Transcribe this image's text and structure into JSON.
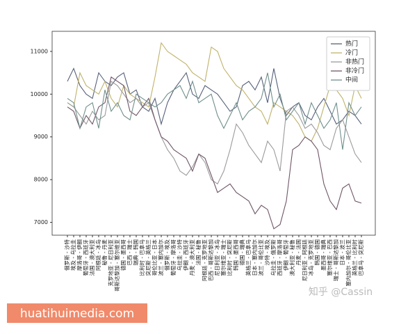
{
  "chart_data": {
    "type": "line",
    "categories": [
      "俄罗斯 - 沙特",
      "埃及 - 乌拉圭",
      "摩洛哥 - 伊朗",
      "葡萄牙 - 西班牙",
      "法国 - 澳大利亚",
      "阿根廷 - 冰岛",
      "秘鲁 - 丹麦",
      "克罗地亚 - 尼日利亚",
      "哥斯达黎加 - 塞尔维亚",
      "德国 - 墨西哥",
      "巴西 - 瑞士",
      "瑞典 - 韩国",
      "比利时 - 巴拿马",
      "突尼斯 - 英格兰",
      "哥伦比亚 - 日本",
      "波兰 - 塞内加尔",
      "俄罗斯 - 埃及",
      "葡萄牙 - 摩洛哥",
      "乌拉圭 - 沙特",
      "伊朗 - 西班牙",
      "丹麦 - 澳大利亚",
      "法国 - 秘鲁",
      "阿根廷 - 克罗地亚",
      "巴西 - 哥斯达黎加",
      "尼日利亚 - 冰岛",
      "塞尔维亚 - 瑞士",
      "比利时 - 突尼斯",
      "韩国 - 墨西哥",
      "德国 - 瑞典",
      "英格兰 - 巴拿马",
      "日本 - 塞内加尔",
      "波兰 - 哥伦比亚",
      "沙特 - 埃及",
      "乌拉圭 - 俄罗斯",
      "西班牙 - 摩洛哥",
      "伊朗 - 葡萄牙",
      "澳大利亚 - 秘鲁",
      "丹麦 - 法国",
      "尼日利亚 - 阿根廷",
      "冰岛 - 克罗地亚",
      "韩国 - 德国",
      "墨西哥 - 瑞典",
      "塞尔维亚 - 巴西",
      "瑞士 - 哥斯达黎加",
      "日本 - 波兰",
      "塞内加尔 - 哥伦比亚",
      "英格兰 - 比利时",
      "巴拿马 - 突尼斯"
    ],
    "series": [
      {
        "name": "热门",
        "color": "#56607a",
        "values": [
          10300,
          10600,
          10200,
          10000,
          9900,
          10500,
          10300,
          10200,
          10400,
          10500,
          10000,
          10100,
          9700,
          9600,
          9900,
          9300,
          9800,
          10100,
          10300,
          10500,
          10000,
          9900,
          10200,
          10100,
          10000,
          9800,
          9600,
          9700,
          10200,
          10300,
          10100,
          10400,
          9800,
          10600,
          9900,
          9500,
          9700,
          9800,
          9500,
          9400,
          9700,
          9900,
          9600,
          9300,
          9400,
          9600,
          9500,
          9300
        ]
      },
      {
        "name": "冷门",
        "color": "#bfb26a",
        "values": [
          9800,
          9700,
          10500,
          10200,
          10100,
          10000,
          10300,
          9900,
          9700,
          10200,
          10000,
          9900,
          9800,
          9700,
          10400,
          11200,
          11000,
          10900,
          10800,
          10700,
          10500,
          10400,
          10300,
          11100,
          11000,
          10600,
          10400,
          10200,
          10100,
          9900,
          9700,
          9600,
          9300,
          9800,
          9700,
          9600,
          9500,
          9300,
          9000,
          8900,
          9200,
          9700,
          10200,
          10100,
          9900,
          9500,
          10200,
          9900
        ]
      },
      {
        "name": "非热门",
        "color": "#9a9a9a",
        "values": [
          9800,
          9700,
          9500,
          9300,
          9600,
          9400,
          9500,
          10300,
          10200,
          10000,
          9800,
          9900,
          9700,
          9800,
          9400,
          9000,
          8700,
          8500,
          8200,
          8100,
          8300,
          8600,
          8400,
          8000,
          7900,
          8200,
          8700,
          9300,
          9100,
          8800,
          8600,
          8400,
          8900,
          8700,
          8200,
          9600,
          9700,
          9500,
          9200,
          9300,
          9100,
          8800,
          8700,
          9200,
          9400,
          9000,
          8600,
          8400
        ]
      },
      {
        "name": "非冷门",
        "color": "#6e5566",
        "values": [
          9700,
          9600,
          9200,
          9500,
          9300,
          9700,
          9800,
          10400,
          10300,
          10200,
          9600,
          9500,
          9700,
          9900,
          9400,
          9000,
          8900,
          8700,
          8600,
          8500,
          8200,
          8600,
          8500,
          8100,
          7700,
          7800,
          7900,
          7700,
          7600,
          7500,
          7200,
          7400,
          7300,
          6850,
          6950,
          7500,
          8700,
          8800,
          9000,
          8900,
          8700,
          7900,
          7500,
          7300,
          7800,
          7900,
          7500,
          7450
        ]
      },
      {
        "name": "中间",
        "color": "#6f8f8a",
        "values": [
          9900,
          9800,
          9200,
          9700,
          9800,
          9200,
          10100,
          9600,
          9800,
          9500,
          9400,
          10000,
          9900,
          9800,
          9700,
          9800,
          10000,
          10100,
          10200,
          9900,
          10300,
          9800,
          9900,
          10000,
          9500,
          9200,
          9500,
          9800,
          9400,
          9600,
          9700,
          9900,
          10500,
          9700,
          10000,
          9400,
          9600,
          9800,
          9300,
          9800,
          9500,
          9200,
          9400,
          9800,
          8700,
          9800,
          9500,
          9700
        ]
      }
    ],
    "ylim": [
      6700,
      11470
    ],
    "yticks": [
      7000,
      8000,
      9000,
      10000,
      11000
    ],
    "grid": false,
    "legend": "upper-right"
  },
  "watermarks": [
    "知乎 @Cassin",
    "huatihuimedia.com"
  ]
}
